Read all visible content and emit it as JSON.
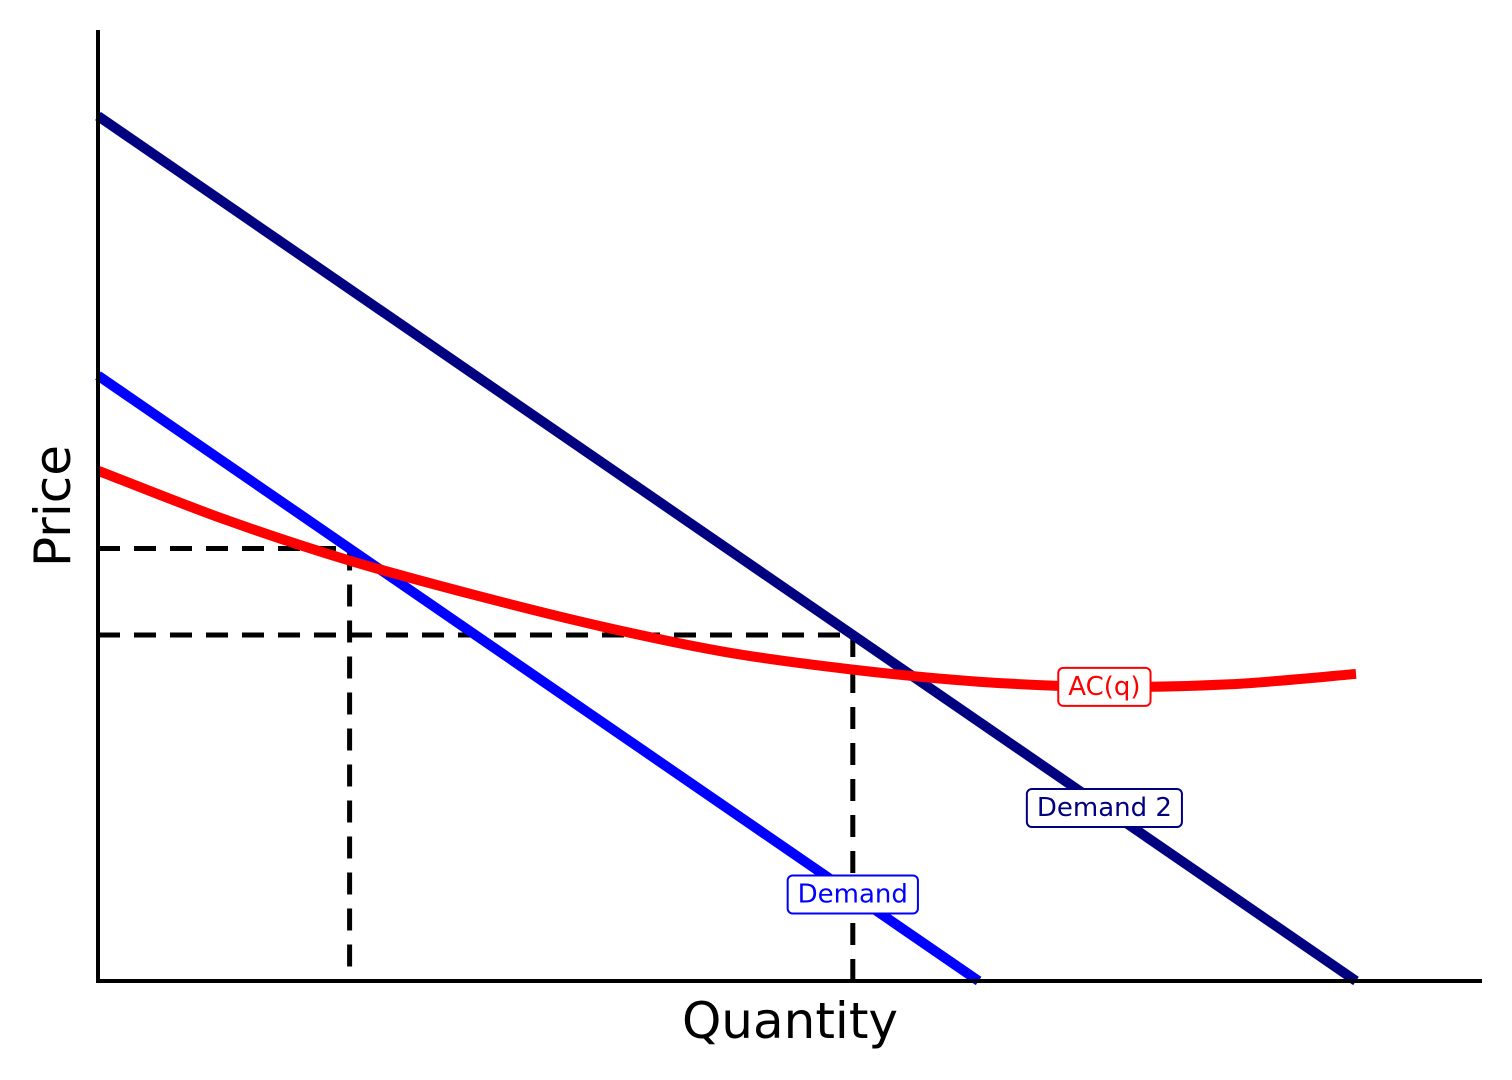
{
  "chart_data": {
    "type": "line",
    "title": "",
    "xlabel": "Quantity",
    "ylabel": "Price",
    "xlim": [
      0,
      10
    ],
    "ylim": [
      0,
      10
    ],
    "grid": false,
    "ticks": false,
    "series": [
      {
        "name": "Demand",
        "color": "#0000ff",
        "x": [
          0,
          7
        ],
        "y": [
          7,
          0
        ]
      },
      {
        "name": "Demand 2",
        "color": "#000080",
        "x": [
          0,
          10
        ],
        "y": [
          10,
          0
        ]
      },
      {
        "name": "AC(q)",
        "color": "#ff0000",
        "x": [
          0,
          1,
          2,
          3,
          4,
          5,
          6,
          7,
          8,
          9,
          10
        ],
        "y": [
          5.9,
          5.34,
          4.86,
          4.46,
          4.1,
          3.8,
          3.6,
          3.46,
          3.4,
          3.43,
          3.55
        ]
      }
    ],
    "reference_lines": [
      {
        "x": 2,
        "y": 5.0
      },
      {
        "x": 6,
        "y": 4.0
      }
    ]
  }
}
